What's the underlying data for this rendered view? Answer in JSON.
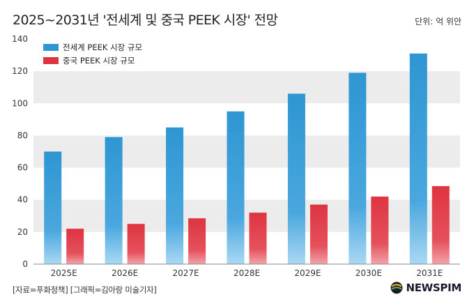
{
  "header": {
    "title": "2025~2031년 '전세계 및 중국 PEEK 시장' 전망",
    "unit": "단위: 억 위안"
  },
  "footer": {
    "source": "[자료=푸화정책] [그래픽=김아랑 미술기자]",
    "logo": "NEWSPIM"
  },
  "colors": {
    "global": "#2e96d2",
    "china": "#de3440",
    "band": "#ececec"
  },
  "chart_data": {
    "type": "bar",
    "categories": [
      "2025E",
      "2026E",
      "2027E",
      "2028E",
      "2029E",
      "2030E",
      "2031E"
    ],
    "series": [
      {
        "name": "전세계 PEEK 시장 규모",
        "values": [
          70,
          79,
          85,
          95,
          106,
          119,
          131
        ]
      },
      {
        "name": "중국 PEEK 시장 규모",
        "values": [
          22,
          25,
          28.5,
          32,
          37,
          42,
          48.5
        ]
      }
    ],
    "ylim": [
      0,
      140
    ],
    "yticks": [
      0,
      20,
      40,
      60,
      80,
      100,
      120,
      140
    ],
    "legend": "top-left",
    "grid": "alternating bands"
  }
}
